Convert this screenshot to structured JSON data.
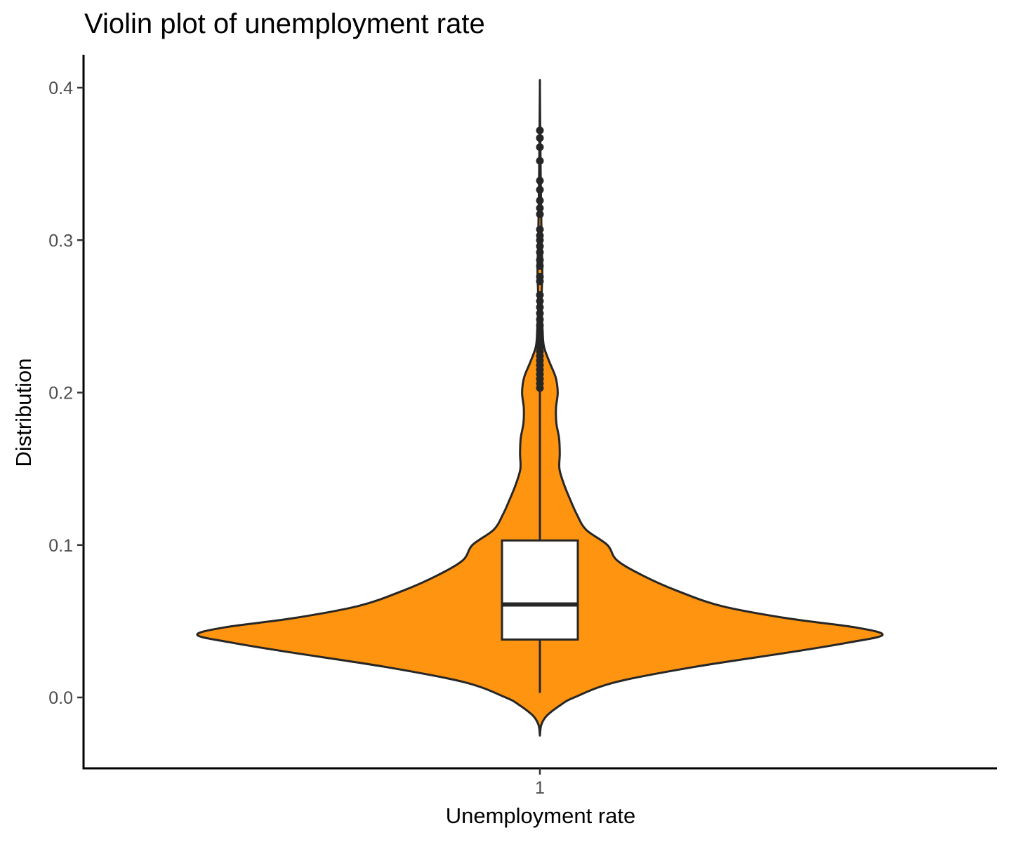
{
  "chart_data": {
    "type": "violin",
    "title": "Violin plot of unemployment rate",
    "xlabel": "Unemployment rate",
    "ylabel": "Distribution",
    "categories": [
      "1"
    ],
    "ylim": [
      -0.046,
      0.422
    ],
    "yticks": [
      0.0,
      0.1,
      0.2,
      0.3,
      0.4
    ],
    "ytick_labels": [
      "0.0",
      "0.1",
      "0.2",
      "0.3",
      "0.4"
    ],
    "grid": false,
    "violin_fill": "#ff9410",
    "outline_color": "#262626",
    "box_fill": "#ffffff",
    "violin": {
      "y_min": -0.025,
      "y_max": 0.4,
      "density_profile": [
        [
          -0.025,
          0.0
        ],
        [
          -0.018,
          0.004
        ],
        [
          -0.012,
          0.02
        ],
        [
          -0.005,
          0.06
        ],
        [
          0.0,
          0.1
        ],
        [
          0.01,
          0.22
        ],
        [
          0.02,
          0.45
        ],
        [
          0.03,
          0.74
        ],
        [
          0.036,
          0.9
        ],
        [
          0.041,
          1.0
        ],
        [
          0.046,
          0.92
        ],
        [
          0.052,
          0.72
        ],
        [
          0.06,
          0.53
        ],
        [
          0.07,
          0.4
        ],
        [
          0.08,
          0.3
        ],
        [
          0.09,
          0.225
        ],
        [
          0.1,
          0.197
        ],
        [
          0.11,
          0.135
        ],
        [
          0.12,
          0.108
        ],
        [
          0.13,
          0.088
        ],
        [
          0.14,
          0.07
        ],
        [
          0.15,
          0.057
        ],
        [
          0.16,
          0.058
        ],
        [
          0.17,
          0.056
        ],
        [
          0.18,
          0.048
        ],
        [
          0.19,
          0.047
        ],
        [
          0.2,
          0.052
        ],
        [
          0.21,
          0.046
        ],
        [
          0.22,
          0.028
        ],
        [
          0.23,
          0.012
        ],
        [
          0.24,
          0.008
        ],
        [
          0.26,
          0.005
        ],
        [
          0.28,
          0.007
        ],
        [
          0.3,
          0.005
        ],
        [
          0.33,
          0.003
        ],
        [
          0.36,
          0.0015
        ],
        [
          0.4,
          0.0
        ]
      ]
    },
    "boxplot": {
      "q1": 0.038,
      "median": 0.061,
      "q3": 0.103,
      "whisker_low": 0.003,
      "whisker_high": 0.201
    },
    "outliers": [
      0.203,
      0.206,
      0.209,
      0.212,
      0.215,
      0.218,
      0.221,
      0.224,
      0.227,
      0.23,
      0.233,
      0.236,
      0.24,
      0.244,
      0.248,
      0.252,
      0.256,
      0.26,
      0.264,
      0.273,
      0.276,
      0.283,
      0.287,
      0.292,
      0.296,
      0.3,
      0.303,
      0.307,
      0.317,
      0.321,
      0.326,
      0.333,
      0.339,
      0.352,
      0.361,
      0.367,
      0.372
    ]
  }
}
